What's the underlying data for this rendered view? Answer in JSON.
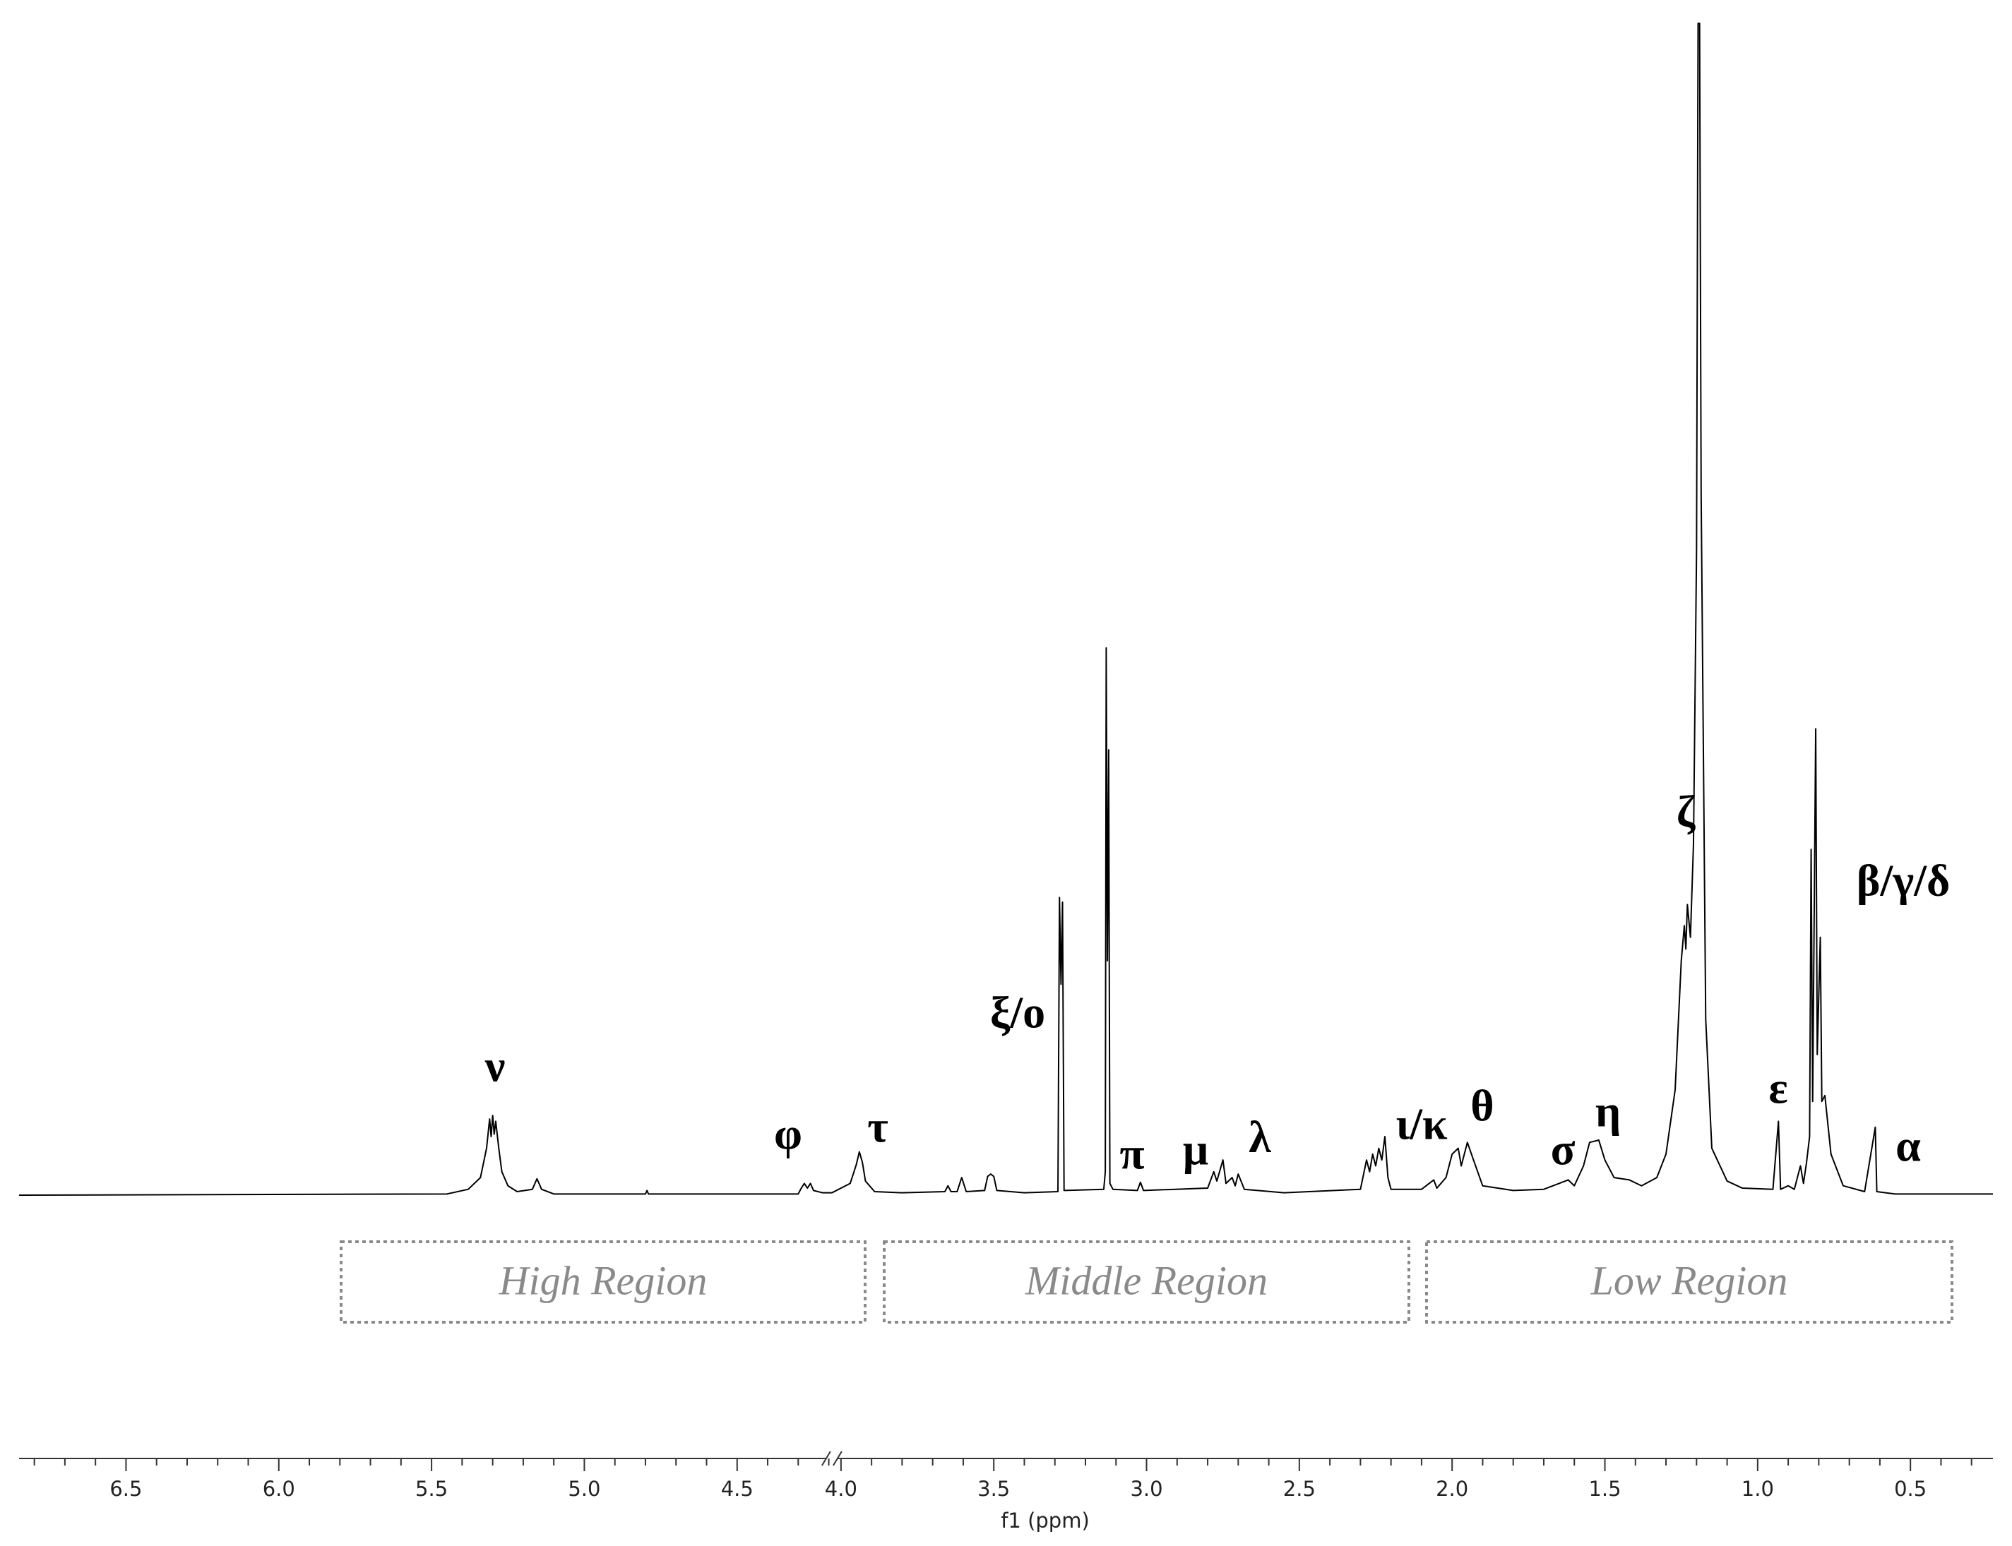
{
  "chart_data": {
    "type": "line",
    "x_label": "f1 (ppm)",
    "color": "#000000",
    "xlim": [
      6.85,
      0.23
    ],
    "xbreak": [
      4.19,
      4.03
    ],
    "ylim": [
      0,
      100
    ],
    "xticks": [
      6.5,
      {
        "value": 6,
        "label": "6.0"
      },
      5.5,
      {
        "value": 5,
        "label": "5.0"
      },
      4.5,
      {
        "value": 4,
        "label": "4.0"
      },
      3.5,
      {
        "value": 3,
        "label": "3.0"
      },
      2.5,
      {
        "value": 2,
        "label": "2.0"
      },
      1.5,
      {
        "value": 1,
        "label": "1.0"
      },
      0.5
    ],
    "xminorticks": [
      6.8,
      6.7,
      6.6,
      6.4,
      6.3,
      6.2,
      6.1,
      5.9,
      5.8,
      5.7,
      5.6,
      5.4,
      5.3,
      5.2,
      5.1,
      4.9,
      4.8,
      4.7,
      4.6,
      4.4,
      4.3,
      4.2,
      3.9,
      3.8,
      3.7,
      3.6,
      3.4,
      3.3,
      3.2,
      3.1,
      2.9,
      2.8,
      2.7,
      2.6,
      2.4,
      2.3,
      2.2,
      2.1,
      1.9,
      1.8,
      1.7,
      1.6,
      1.4,
      1.3,
      1.2,
      1.1,
      0.9,
      0.8,
      0.7,
      0.6,
      0.4,
      0.3
    ],
    "x": [
      6.85,
      5.45,
      5.38,
      5.34,
      5.32,
      5.31,
      5.305,
      5.3,
      5.295,
      5.29,
      5.28,
      5.27,
      5.25,
      5.22,
      5.17,
      5.155,
      5.14,
      5.1,
      4.8,
      4.795,
      4.79,
      4.3,
      4.29,
      4.28,
      4.27,
      4.26,
      4.25,
      4.22,
      4.19,
      4.03,
      3.97,
      3.95,
      3.94,
      3.93,
      3.92,
      3.89,
      3.8,
      3.66,
      3.65,
      3.64,
      3.62,
      3.605,
      3.59,
      3.53,
      3.52,
      3.51,
      3.5,
      3.49,
      3.4,
      3.29,
      3.285,
      3.28,
      3.275,
      3.27,
      3.14,
      3.135,
      3.132,
      3.128,
      3.124,
      3.12,
      3.11,
      3.03,
      3.02,
      3.01,
      2.8,
      2.78,
      2.77,
      2.75,
      2.74,
      2.72,
      2.71,
      2.7,
      2.68,
      2.55,
      2.3,
      2.28,
      2.27,
      2.26,
      2.25,
      2.24,
      2.23,
      2.22,
      2.21,
      2.2,
      2.1,
      2.06,
      2.05,
      2.02,
      2.0,
      1.98,
      1.97,
      1.95,
      1.93,
      1.9,
      1.8,
      1.7,
      1.65,
      1.62,
      1.6,
      1.57,
      1.55,
      1.52,
      1.5,
      1.47,
      1.42,
      1.38,
      1.33,
      1.3,
      1.27,
      1.25,
      1.24,
      1.235,
      1.23,
      1.22,
      1.21,
      1.2,
      1.195,
      1.19,
      1.185,
      1.17,
      1.15,
      1.1,
      1.05,
      0.95,
      0.932,
      0.925,
      0.9,
      0.88,
      0.86,
      0.85,
      0.84,
      0.83,
      0.825,
      0.82,
      0.81,
      0.805,
      0.795,
      0.79,
      0.78,
      0.76,
      0.72,
      0.65,
      0.615,
      0.61,
      0.55,
      0.23
    ],
    "values": [
      0,
      0.1,
      0.5,
      1.5,
      4,
      6.5,
      5,
      6.8,
      5.2,
      6.3,
      4,
      2,
      0.8,
      0.3,
      0.5,
      1.4,
      0.5,
      0.1,
      0.1,
      0.4,
      0.1,
      0.1,
      0.6,
      1.0,
      0.6,
      1.0,
      0.4,
      0.2,
      0.2,
      0.2,
      1,
      2.6,
      3.7,
      2.8,
      1.2,
      0.3,
      0.2,
      0.3,
      0.8,
      0.3,
      0.3,
      1.5,
      0.3,
      0.4,
      1.6,
      1.8,
      1.6,
      0.4,
      0.2,
      0.3,
      25.4,
      18,
      25,
      0.4,
      0.5,
      2,
      46.7,
      20,
      38,
      1,
      0.5,
      0.4,
      1.1,
      0.4,
      0.6,
      2.0,
      1.2,
      3.0,
      1.0,
      1.5,
      0.8,
      1.8,
      0.5,
      0.2,
      0.5,
      3,
      2,
      3.5,
      2.5,
      4,
      3,
      5,
      1.5,
      0.5,
      0.5,
      1.3,
      0.6,
      1.5,
      3.5,
      4,
      2.5,
      4.5,
      3,
      0.8,
      0.4,
      0.5,
      1.0,
      1.3,
      0.8,
      2.5,
      4.5,
      4.7,
      3,
      1.5,
      1.3,
      0.8,
      1.5,
      3.5,
      9,
      20,
      23,
      21,
      24.8,
      22,
      30,
      55,
      100,
      100,
      60,
      15,
      4,
      1.2,
      0.6,
      0.5,
      6.3,
      0.5,
      0.8,
      0.5,
      2.5,
      1.0,
      2.8,
      5,
      29.5,
      8,
      39.8,
      12,
      22,
      8,
      8.5,
      3.5,
      0.8,
      0.3,
      5.8,
      0.3,
      0.1,
      0.1
    ],
    "peak_labels": [
      "ν",
      "φ",
      "τ",
      "ξ/o",
      "π",
      "μ",
      "λ",
      "ι/κ",
      "θ",
      "σ",
      "η",
      "ζ",
      "β/γ/δ",
      "ε",
      "α"
    ],
    "region_labels": [
      "High Region",
      "Middle Region",
      "Low Region"
    ]
  }
}
